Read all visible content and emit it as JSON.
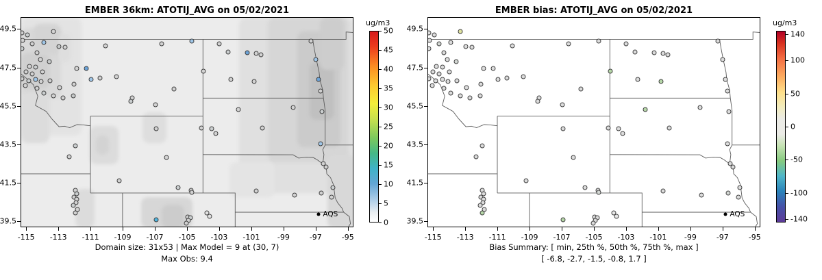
{
  "figure": {
    "panels": [
      {
        "title": "EMBER 36km: ATOTIJ_AVG on 05/02/2021",
        "captions": [
          "Domain size: 31x53 | Max Model = 9 at (30, 7)",
          "Max Obs: 9.4"
        ],
        "legend_label": "AQS",
        "show_field": true,
        "station_color_index": 2,
        "colorbar": {
          "title": "ug/m3",
          "min": 0,
          "max": 50,
          "ticks": [
            0,
            5,
            10,
            15,
            20,
            25,
            30,
            35,
            40,
            45,
            50
          ],
          "stops": [
            {
              "p": 0,
              "c": "#ffffff"
            },
            {
              "p": 5,
              "c": "#e9eef2"
            },
            {
              "p": 12,
              "c": "#a9cbe8"
            },
            {
              "p": 20,
              "c": "#63a6d5"
            },
            {
              "p": 28,
              "c": "#3fb3c8"
            },
            {
              "p": 36,
              "c": "#45b887"
            },
            {
              "p": 44,
              "c": "#7cc95e"
            },
            {
              "p": 54,
              "c": "#c8e14e"
            },
            {
              "p": 62,
              "c": "#f4ef3a"
            },
            {
              "p": 72,
              "c": "#fdc82f"
            },
            {
              "p": 82,
              "c": "#fb8b22"
            },
            {
              "p": 92,
              "c": "#ec3c1d"
            },
            {
              "p": 100,
              "c": "#d7191c"
            }
          ]
        }
      },
      {
        "title": "EMBER bias: ATOTIJ_AVG on 05/02/2021",
        "captions": [
          "Bias Summary: [ min, 25th %, 50th %, 75th %, max ]",
          "[ -6.8,  -2.7,  -1.5,  -0.8,  1.7 ]"
        ],
        "legend_label": "AQS",
        "show_field": false,
        "station_color_index": 3,
        "colorbar": {
          "title": "ug/m3",
          "min": -145,
          "max": 145,
          "ticks": [
            140,
            100,
            50,
            0,
            -50,
            -100,
            -140
          ],
          "stops": [
            {
              "p": 0,
              "c": "#5e3c99"
            },
            {
              "p": 8,
              "c": "#4551a8"
            },
            {
              "p": 16,
              "c": "#2b83ba"
            },
            {
              "p": 24,
              "c": "#4fb6c9"
            },
            {
              "p": 32,
              "c": "#86ca7f"
            },
            {
              "p": 40,
              "c": "#c6e3b4"
            },
            {
              "p": 46,
              "c": "#ebebe6"
            },
            {
              "p": 54,
              "c": "#ebebe6"
            },
            {
              "p": 60,
              "c": "#f2ecc0"
            },
            {
              "p": 68,
              "c": "#fee08b"
            },
            {
              "p": 76,
              "c": "#fdae61"
            },
            {
              "p": 86,
              "c": "#f46d43"
            },
            {
              "p": 94,
              "c": "#d7301f"
            },
            {
              "p": 100,
              "c": "#b10026"
            }
          ]
        }
      }
    ],
    "axes": {
      "x_ticks": [
        -115,
        -113,
        -111,
        -109,
        -107,
        -105,
        -103,
        -101,
        -99,
        -97,
        -95
      ],
      "y_ticks": [
        39.5,
        41.5,
        43.5,
        45.5,
        47.5,
        49.5
      ]
    },
    "chart_data": {
      "type": "scatter",
      "note": "stations: [lon, lat, model_panel_fill, bias_panel_fill]",
      "stations": [
        [
          -115.32,
          49.35,
          "#d2d2d2",
          "#dcdcdc"
        ],
        [
          -114.95,
          49.22,
          "#cbcfd0",
          "#dcdcdc"
        ],
        [
          -113.35,
          49.4,
          "#d2d2d2",
          "#dfe3a0"
        ],
        [
          -115.25,
          48.95,
          "#d2d2d2",
          "#dcdcdc"
        ],
        [
          -113.95,
          48.85,
          "#9fc6e8",
          "#dcdcdc"
        ],
        [
          -114.65,
          48.75,
          "#d2d2d2",
          "#d4d8d4"
        ],
        [
          -115.3,
          48.5,
          "#cbcfd0",
          "#dcdcdc"
        ],
        [
          -114.35,
          48.3,
          "#d2d2d2",
          "#dcdcdc"
        ],
        [
          -113.0,
          48.64,
          "#c6c9c9",
          "#dcdcdc"
        ],
        [
          -112.63,
          48.6,
          "#d2d2d2",
          "#dcdcdc"
        ],
        [
          -110.1,
          48.65,
          "#d2d2d2",
          "#dcdcdc"
        ],
        [
          -106.6,
          48.75,
          "#d2d2d2",
          "#dcdcdc"
        ],
        [
          -104.75,
          48.9,
          "#9fc6e8",
          "#dcdcdc"
        ],
        [
          -114.15,
          47.95,
          "#d2d2d2",
          "#dcdcdc"
        ],
        [
          -113.6,
          47.85,
          "#c6c9c9",
          "#d4d8d4"
        ],
        [
          -114.85,
          47.6,
          "#d2d2d2",
          "#dcdcdc"
        ],
        [
          -114.45,
          47.55,
          "#cbcfd0",
          "#dcdcdc"
        ],
        [
          -115.05,
          47.3,
          "#d2d2d2",
          "#dcdcdc"
        ],
        [
          -114.65,
          47.2,
          "#d2d2d2",
          "#dcdcdc"
        ],
        [
          -114.05,
          47.3,
          "#d2d2d2",
          "#dcdcdc"
        ],
        [
          -115.3,
          46.95,
          "#d2d2d2",
          "#dcdcdc"
        ],
        [
          -114.9,
          46.85,
          "#cbcfd0",
          "#dcdcdc"
        ],
        [
          -115.1,
          46.6,
          "#d2d2d2",
          "#dcdcdc"
        ],
        [
          -114.45,
          46.9,
          "#9fc6e8",
          "#dcdcdc"
        ],
        [
          -114.1,
          46.8,
          "#d2d2d2",
          "#dcdcdc"
        ],
        [
          -113.55,
          46.85,
          "#d2d2d2",
          "#dcdcdc"
        ],
        [
          -114.35,
          46.45,
          "#d2d2d2",
          "#dcdcdc"
        ],
        [
          -113.95,
          46.2,
          "#cbcfd0",
          "#dcdcdc"
        ],
        [
          -113.35,
          46.05,
          "#d2d2d2",
          "#dcdcdc"
        ],
        [
          -112.95,
          46.5,
          "#d2d2d2",
          "#dcdcdc"
        ],
        [
          -112.75,
          45.95,
          "#d2d2d2",
          "#dcdcdc"
        ],
        [
          -112.1,
          46.05,
          "#c6c9c9",
          "#dcdcdc"
        ],
        [
          -111.9,
          47.5,
          "#d2d2d2",
          "#dcdcdc"
        ],
        [
          -111.3,
          47.5,
          "#6ba3d8",
          "#dcdcdc"
        ],
        [
          -111.0,
          46.9,
          "#9fc6e8",
          "#dcdcdc"
        ],
        [
          -112.05,
          46.65,
          "#d2d2d2",
          "#dcdcdc"
        ],
        [
          -110.45,
          47.0,
          "#d2d2d2",
          "#dcdcdc"
        ],
        [
          -109.45,
          47.05,
          "#d2d2d2",
          "#dcdcdc"
        ],
        [
          -108.45,
          45.95,
          "#d2d2d2",
          "#dcdcdc"
        ],
        [
          -108.55,
          45.78,
          "#cbcfd0",
          "#dcdcdc"
        ],
        [
          -107.0,
          45.6,
          "#d2d2d2",
          "#dcdcdc"
        ],
        [
          -105.85,
          46.4,
          "#d2d2d2",
          "#dcdcdc"
        ],
        [
          -104.0,
          47.35,
          "#d2d2d2",
          "#b6d7a8"
        ],
        [
          -103.05,
          48.75,
          "#d2d2d2",
          "#dcdcdc"
        ],
        [
          -102.5,
          48.35,
          "#cbcfd0",
          "#dcdcdc"
        ],
        [
          -101.3,
          48.3,
          "#6ba3d8",
          "#dcdcdc"
        ],
        [
          -100.75,
          48.28,
          "#d2d2d2",
          "#dcdcdc"
        ],
        [
          -100.45,
          48.2,
          "#d2d2d2",
          "#dcdcdc"
        ],
        [
          -97.35,
          48.9,
          "#d2d2d2",
          "#dcdcdc"
        ],
        [
          -97.05,
          47.95,
          "#9fc6e8",
          "#dcdcdc"
        ],
        [
          -96.85,
          46.9,
          "#6ba3d8",
          "#dcdcdc"
        ],
        [
          -100.85,
          46.8,
          "#d2d2d2",
          "#b6d7a8"
        ],
        [
          -102.3,
          46.9,
          "#d2d2d2",
          "#dcdcdc"
        ],
        [
          -96.75,
          46.3,
          "#d2d2d2",
          "#dcdcdc"
        ],
        [
          -98.45,
          45.45,
          "#d2d2d2",
          "#dcdcdc"
        ],
        [
          -96.65,
          45.25,
          "#cbcfd0",
          "#dcdcdc"
        ],
        [
          -101.85,
          45.35,
          "#d2d2d2",
          "#b6d7a8"
        ],
        [
          -100.35,
          44.4,
          "#d2d2d2",
          "#dcdcdc"
        ],
        [
          -103.25,
          44.1,
          "#d2d2d2",
          "#dcdcdc"
        ],
        [
          -103.5,
          44.35,
          "#cbcfd0",
          "#dcdcdc"
        ],
        [
          -96.75,
          43.55,
          "#9fc6e8",
          "#dcdcdc"
        ],
        [
          -96.55,
          42.52,
          "#d2d2d2",
          "#dcdcdc"
        ],
        [
          -96.4,
          42.35,
          "#d2d2d2",
          "#dcdcdc"
        ],
        [
          -106.95,
          44.35,
          "#d2d2d2",
          "#dcdcdc"
        ],
        [
          -104.15,
          44.4,
          "#d2d2d2",
          "#dcdcdc"
        ],
        [
          -106.3,
          42.85,
          "#d2d2d2",
          "#dcdcdc"
        ],
        [
          -105.6,
          41.3,
          "#cbcfd0",
          "#dcdcdc"
        ],
        [
          -104.8,
          41.15,
          "#d2d2d2",
          "#dcdcdc"
        ],
        [
          -104.75,
          41.03,
          "#d2d2d2",
          "#d4d8d4"
        ],
        [
          -109.25,
          41.65,
          "#d2d2d2",
          "#dcdcdc"
        ],
        [
          -112.35,
          42.9,
          "#d2d2d2",
          "#dcdcdc"
        ],
        [
          -112.0,
          43.45,
          "#cbcfd0",
          "#dcdcdc"
        ],
        [
          -100.75,
          41.1,
          "#d2d2d2",
          "#dcdcdc"
        ],
        [
          -98.35,
          40.9,
          "#d2d2d2",
          "#dcdcdc"
        ],
        [
          -96.7,
          41.0,
          "#d2d2d2",
          "#d4d8d4"
        ],
        [
          -95.95,
          41.3,
          "#cbcfd0",
          "#dcdcdc"
        ],
        [
          -96.05,
          40.8,
          "#d2d2d2",
          "#dcdcdc"
        ],
        [
          -105.0,
          39.75,
          "#d2d2d2",
          "#dcdcdc"
        ],
        [
          -104.85,
          39.72,
          "#cbcfd0",
          "#dcdcdc"
        ],
        [
          -104.95,
          39.58,
          "#d2d2d2",
          "#dcdcdc"
        ],
        [
          -105.1,
          39.42,
          "#d2d2d2",
          "#dcdcdc"
        ],
        [
          -103.8,
          39.95,
          "#e3e3e3",
          "#e8e8e8"
        ],
        [
          -103.65,
          39.8,
          "#e3e3e3",
          "#e8e8e8"
        ],
        [
          -106.95,
          39.6,
          "#4fb6e0",
          "#b6d7a8"
        ],
        [
          -112.0,
          41.15,
          "#d2d2d2",
          "#dcdcdc"
        ],
        [
          -111.9,
          40.95,
          "#cbcfd0",
          "#dcdcdc"
        ],
        [
          -112.05,
          40.8,
          "#d2d2d2",
          "#dcdcdc"
        ],
        [
          -111.9,
          40.68,
          "#d2d2d2",
          "#dcdcdc"
        ],
        [
          -111.95,
          40.5,
          "#d2d2d2",
          "#dcdcdc"
        ],
        [
          -112.1,
          40.35,
          "#cbcfd0",
          "#dcdcdc"
        ],
        [
          -111.85,
          40.15,
          "#d2d2d2",
          "#dcdcdc"
        ],
        [
          -112.0,
          39.95,
          "#d2d2d2",
          "#b6d7a8"
        ]
      ]
    },
    "field_patches": [
      [
        -115.35,
        50.12,
        -111.6,
        44.0,
        "#e3e3e3"
      ],
      [
        -115.35,
        49.6,
        -112.9,
        45.9,
        "#d9d9d9"
      ],
      [
        -115.35,
        48.3,
        -113.6,
        46.4,
        "#d0d0d0"
      ],
      [
        -114.6,
        49.8,
        -112.9,
        48.2,
        "#d4d4d4"
      ],
      [
        -113.0,
        49.3,
        -112.3,
        47.8,
        "#dedede"
      ],
      [
        -115.35,
        46.2,
        -113.6,
        43.6,
        "#dcdcdc"
      ],
      [
        -111.1,
        44.5,
        -109.3,
        42.5,
        "#dcdcdc"
      ],
      [
        -110.7,
        44.0,
        -109.9,
        43.0,
        "#d3d3d3"
      ],
      [
        -107.8,
        45.2,
        -106.3,
        43.6,
        "#dedede"
      ],
      [
        -112.0,
        41.2,
        -110.8,
        39.18,
        "#dcdcdc"
      ],
      [
        -107.9,
        40.8,
        -104.7,
        39.18,
        "#d7d7d7"
      ],
      [
        -106.6,
        40.4,
        -105.2,
        39.18,
        "#cccccc"
      ],
      [
        -101.8,
        50.12,
        -94.65,
        41.0,
        "#e0e0e0"
      ],
      [
        -100.0,
        50.12,
        -95.0,
        42.6,
        "#d6d6d6"
      ],
      [
        -98.2,
        49.4,
        -95.5,
        43.4,
        "#cbcbcb"
      ],
      [
        -97.4,
        47.8,
        -95.9,
        44.8,
        "#c0c0c0"
      ],
      [
        -96.8,
        50.12,
        -95.3,
        47.4,
        "#cdcdcd"
      ],
      [
        -96.3,
        43.0,
        -94.65,
        39.18,
        "#d8d8d8"
      ],
      [
        -102.4,
        42.6,
        -99.6,
        40.8,
        "#e4e4e4"
      ]
    ]
  }
}
